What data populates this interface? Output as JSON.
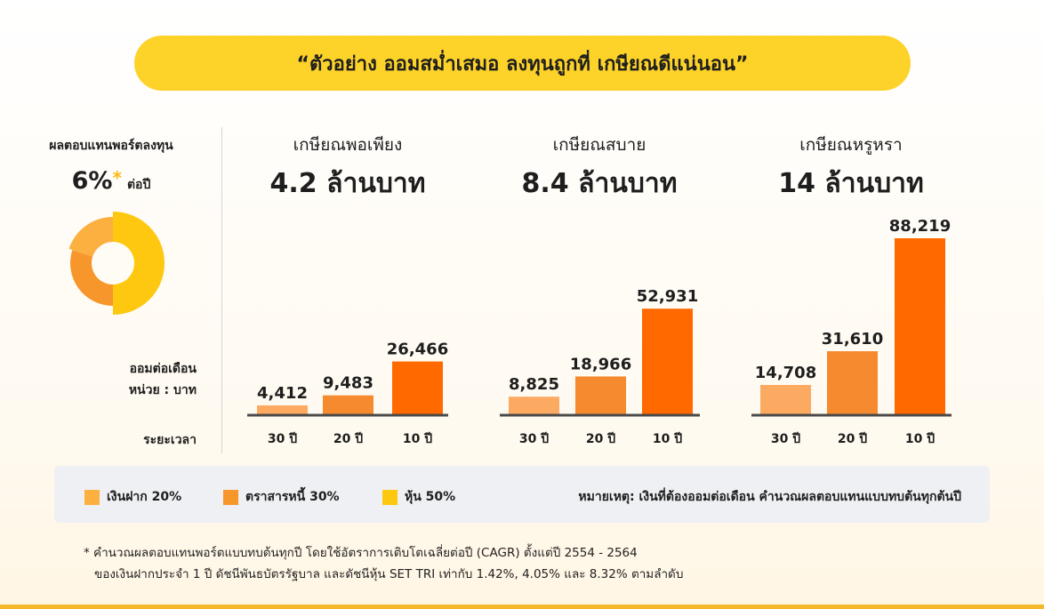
{
  "title": "“ตัวอย่าง ออมสม่ำเสมอ ลงทุนถูกที่ เกษียณดีแน่นอน”",
  "return_label": "ผลตอบแทนพอร์ตลงทุน",
  "return_value": "6%",
  "return_star": "*",
  "return_per": "ต่อปี",
  "axis_label_unit_1": "ออมต่อเดือน",
  "axis_label_unit_2": "หน่วย : บาท",
  "axis_label_period": "ระยะเวลา",
  "donut": {
    "slices": [
      {
        "name": "หุ้น 50%",
        "value": 50,
        "color": "#fdc80f"
      },
      {
        "name": "ตราสารหนี้ 30%",
        "value": 30,
        "color": "#f7962b"
      },
      {
        "name": "เงินฝาก 20%",
        "value": 20,
        "color": "#fbb040"
      }
    ]
  },
  "colors": {
    "bar_30": "#fca962",
    "bar_20": "#f58a2e",
    "bar_10": "#ff6900",
    "axis": "#4a4a4a"
  },
  "chart_data": [
    {
      "type": "bar",
      "subtitle": "เกษียณพอเพียง",
      "title": "4.2 ล้านบาท",
      "categories": [
        "30 ปี",
        "20 ปี",
        "10 ปี"
      ],
      "values": [
        4412,
        9483,
        26466
      ],
      "labels": [
        "4,412",
        "9,483",
        "26,466"
      ],
      "ylim": [
        0,
        88219
      ]
    },
    {
      "type": "bar",
      "subtitle": "เกษียณสบาย",
      "title": "8.4 ล้านบาท",
      "categories": [
        "30 ปี",
        "20 ปี",
        "10 ปี"
      ],
      "values": [
        8825,
        18966,
        52931
      ],
      "labels": [
        "8,825",
        "18,966",
        "52,931"
      ],
      "ylim": [
        0,
        88219
      ]
    },
    {
      "type": "bar",
      "subtitle": "เกษียณหรูหรา",
      "title": "14 ล้านบาท",
      "categories": [
        "30 ปี",
        "20 ปี",
        "10 ปี"
      ],
      "values": [
        14708,
        31610,
        88219
      ],
      "labels": [
        "14,708",
        "31,610",
        "88,219"
      ],
      "ylim": [
        0,
        88219
      ]
    }
  ],
  "legend": {
    "items": [
      {
        "label": "เงินฝาก 20%",
        "color": "#fbb040"
      },
      {
        "label": "ตราสารหนี้ 30%",
        "color": "#f7962b"
      },
      {
        "label": "หุ้น 50%",
        "color": "#fdc80f"
      }
    ],
    "note": "หมายเหตุ: เงินที่ต้องออมต่อเดือน คำนวณผลตอบแทนแบบทบต้นทุกต้นปี"
  },
  "footnote_line1": "* คำนวณผลตอบแทนพอร์ตแบบทบต้นทุกปี โดยใช้อัตราการเติบโตเฉลี่ยต่อปี (CAGR) ตั้งแต่ปี 2554 - 2564",
  "footnote_line2": "ของเงินฝากประจำ 1 ปี ดัชนีพันธบัตรรัฐบาล และดัชนีหุ้น SET TRI เท่ากับ 1.42%, 4.05% และ 8.32%  ตามลำดับ"
}
